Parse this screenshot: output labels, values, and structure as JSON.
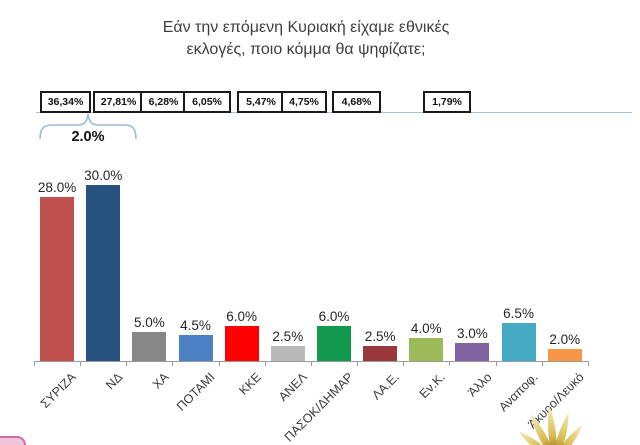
{
  "display_title": {
    "line1": "Εάν την επόμενη Κυριακή είχαμε εθνικές",
    "line2": "εκλογές, ποιο κόμμα θα ψηφίζατε;"
  },
  "chart_data": {
    "type": "bar",
    "title": "Εάν την επόμενη Κυριακή είχαμε εθνικές εκλογές, ποιο κόμμα θα ψηφίζατε;",
    "categories": [
      "ΣΥΡΙΖΑ",
      "ΝΔ",
      "ΧΑ",
      "ΠΟΤΑΜΙ",
      "ΚΚΕ",
      "ΑΝΕΛ",
      "ΠΑΣΟΚ/ΔΗΜΑΡ",
      "ΛΑ.Ε.",
      "Εν.Κ.",
      "Άλλο",
      "Αναποφ.",
      "Άκυρο/Λευκό"
    ],
    "values": [
      28.0,
      30.0,
      5.0,
      4.5,
      6.0,
      2.5,
      6.0,
      2.5,
      4.0,
      3.0,
      6.5,
      2.0
    ],
    "value_labels": [
      "28.0%",
      "30.0%",
      "5.0%",
      "4.5%",
      "6.0%",
      "2.5%",
      "6.0%",
      "2.5%",
      "4.0%",
      "3.0%",
      "6.5%",
      "2.0%"
    ],
    "bar_colors": [
      "#c0504d",
      "#27517e",
      "#878787",
      "#4b80c3",
      "#fe0000",
      "#b9b9b9",
      "#13994d",
      "#99373a",
      "#9bbb59",
      "#8064a2",
      "#47aac5",
      "#f79646"
    ],
    "ylim": [
      0,
      32
    ],
    "grid": false,
    "legend": "none",
    "xlabel": "",
    "ylabel": "",
    "result_boxes": [
      "36,34%",
      "27,81%",
      "6,28%",
      "6,05%",
      "5,47%",
      "4,75%",
      "4,68%",
      "1,79%"
    ],
    "difference_annotation": {
      "text": "2.0%"
    }
  },
  "colors": {
    "brace": "#9db7d6",
    "results_line": "#a8c0d8",
    "axis": "#9b9b9b"
  }
}
